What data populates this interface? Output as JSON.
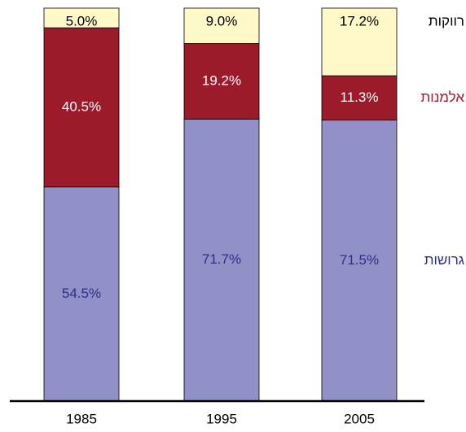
{
  "chart_data": {
    "type": "stacked-bar",
    "categories": [
      "1985",
      "1995",
      "2005"
    ],
    "series": [
      {
        "name": "גרושות",
        "color": "#9191c8",
        "text_color": "#2e2e8a",
        "values": [
          54.5,
          71.7,
          71.5
        ],
        "value_labels": [
          "54.5%",
          "71.7%",
          "71.5%"
        ]
      },
      {
        "name": "אלמנות",
        "color": "#9c1b2b",
        "text_color": "#ffffff",
        "legend_color": "#a3182a",
        "values": [
          40.5,
          19.2,
          11.3
        ],
        "value_labels": [
          "40.5%",
          "19.2%",
          "11.3%"
        ]
      },
      {
        "name": "רווקות",
        "color": "#fff9c9",
        "text_color": "#000000",
        "values": [
          5.0,
          9.0,
          17.2
        ],
        "value_labels": [
          "5.0%",
          "9.0%",
          "17.2%"
        ]
      }
    ]
  }
}
